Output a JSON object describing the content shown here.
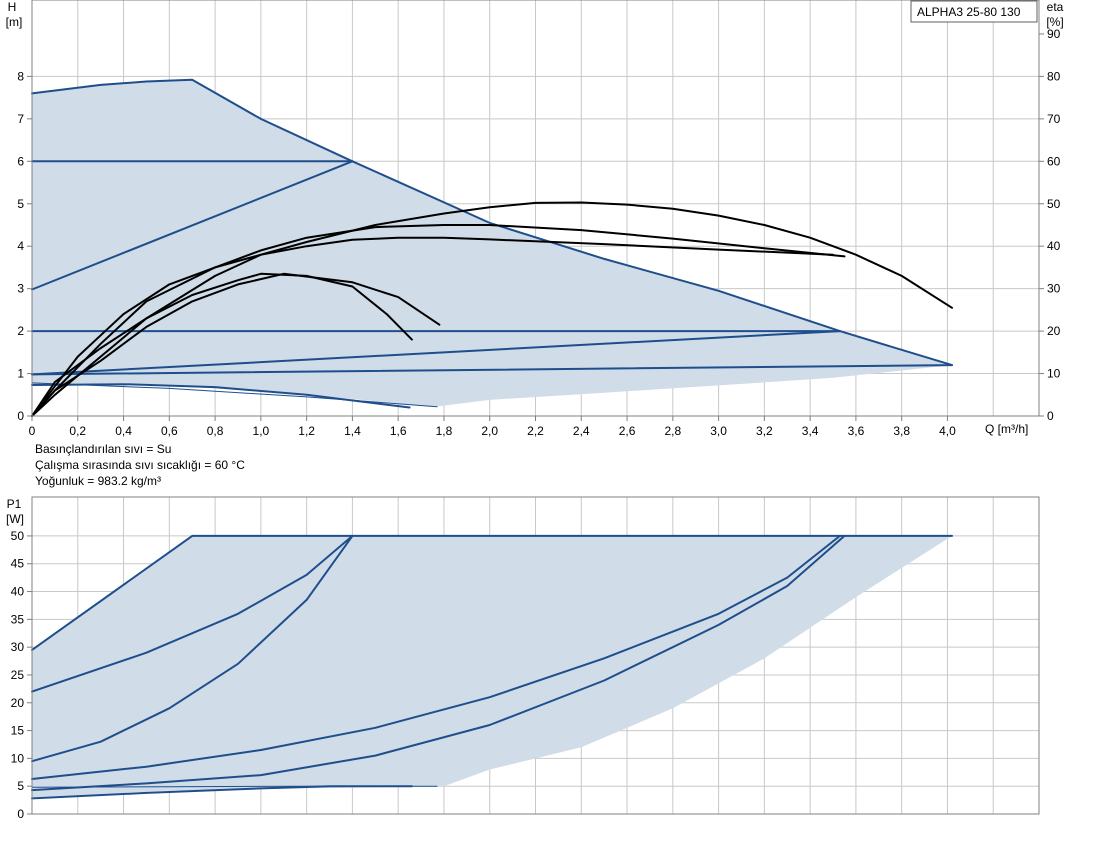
{
  "model_box": {
    "label": "ALPHA3 25-80 130"
  },
  "info_lines": [
    "Basınçlandırılan sıvı = Su",
    "Çalışma sırasında sıvı sıcaklığı = 60 °C",
    "Yoğunluk = 983.2 kg/m³"
  ],
  "colors": {
    "envelope_fill": "#d0dce8",
    "curve_blue": "#1f4e8c",
    "eta_curve": "#000000",
    "grid": "#c8c8c8"
  },
  "chart_data": [
    {
      "type": "line",
      "name": "head_eta",
      "ylabel_lines": [
        "H",
        "[m]"
      ],
      "y2label_lines": [
        "eta",
        "[%]"
      ],
      "xlabel": "Q [m³/h]",
      "xlim": [
        0,
        4.4
      ],
      "ylim": [
        0,
        9.8
      ],
      "y2lim": [
        0,
        98
      ],
      "x_ticks": [
        "0",
        "0,2",
        "0,4",
        "0,6",
        "0,8",
        "1,0",
        "1,2",
        "1,4",
        "1,6",
        "1,8",
        "2,0",
        "2,2",
        "2,4",
        "2,6",
        "2,8",
        "3,0",
        "3,2",
        "3,4",
        "3,6",
        "3,8",
        "4,0"
      ],
      "y_ticks": [
        "0",
        "1",
        "2",
        "3",
        "4",
        "5",
        "6",
        "7",
        "8"
      ],
      "y2_ticks": [
        "0",
        "10",
        "20",
        "30",
        "40",
        "50",
        "60",
        "70",
        "80",
        "90"
      ],
      "grid": true,
      "envelope": [
        [
          0,
          7.6
        ],
        [
          0.3,
          7.8
        ],
        [
          0.5,
          7.88
        ],
        [
          0.7,
          7.92
        ],
        [
          1.0,
          7.0
        ],
        [
          1.4,
          6.0
        ],
        [
          2.0,
          4.55
        ],
        [
          2.5,
          3.7
        ],
        [
          3.0,
          2.95
        ],
        [
          3.53,
          2.0
        ],
        [
          4.02,
          1.2
        ],
        [
          3.5,
          0.9
        ],
        [
          3.0,
          0.72
        ],
        [
          2.5,
          0.55
        ],
        [
          2.0,
          0.38
        ],
        [
          1.76,
          0.22
        ],
        [
          1.2,
          0.5
        ],
        [
          0.6,
          0.72
        ],
        [
          0.2,
          0.76
        ],
        [
          0,
          0.73
        ]
      ],
      "series": [
        {
          "style": "blue",
          "points": [
            [
              0,
              7.6
            ],
            [
              0.3,
              7.8
            ],
            [
              0.5,
              7.88
            ],
            [
              0.7,
              7.92
            ],
            [
              1.0,
              7.0
            ],
            [
              1.4,
              6.0
            ],
            [
              2.0,
              4.55
            ],
            [
              2.5,
              3.7
            ],
            [
              3.0,
              2.95
            ],
            [
              3.53,
              2.0
            ],
            [
              4.02,
              1.2
            ]
          ]
        },
        {
          "style": "blue",
          "points": [
            [
              0,
              6.0
            ],
            [
              1.4,
              6.0
            ]
          ]
        },
        {
          "style": "blue",
          "points": [
            [
              0,
              2.98
            ],
            [
              1.4,
              6.0
            ]
          ]
        },
        {
          "style": "blue",
          "points": [
            [
              0,
              2.0
            ],
            [
              3.53,
              2.0
            ]
          ]
        },
        {
          "style": "blue",
          "points": [
            [
              0,
              0.98
            ],
            [
              3.53,
              2.0
            ]
          ]
        },
        {
          "style": "blue",
          "points": [
            [
              0,
              0.98
            ],
            [
              4.02,
              1.2
            ]
          ]
        },
        {
          "style": "blue",
          "points": [
            [
              0,
              0.73
            ],
            [
              0.4,
              0.75
            ],
            [
              0.8,
              0.68
            ],
            [
              1.2,
              0.5
            ],
            [
              1.65,
              0.2
            ]
          ]
        },
        {
          "style": "thin-blue",
          "points": [
            [
              0,
              0.78
            ],
            [
              0.6,
              0.65
            ],
            [
              1.2,
              0.45
            ],
            [
              1.77,
              0.22
            ]
          ]
        },
        {
          "style": "eta",
          "points": [
            [
              0,
              0
            ],
            [
              0.1,
              7
            ],
            [
              0.2,
              14
            ],
            [
              0.3,
              19
            ],
            [
              0.4,
              24
            ],
            [
              0.6,
              31
            ],
            [
              0.8,
              35
            ],
            [
              1.0,
              38
            ],
            [
              1.2,
              40
            ],
            [
              1.4,
              41.5
            ],
            [
              1.6,
              42
            ],
            [
              1.8,
              42
            ],
            [
              2.0,
              41.6
            ],
            [
              2.5,
              40.5
            ],
            [
              3.0,
              39.2
            ],
            [
              3.5,
              38
            ]
          ]
        },
        {
          "style": "eta",
          "points": [
            [
              0,
              0
            ],
            [
              0.1,
              6
            ],
            [
              0.3,
              17
            ],
            [
              0.5,
              27
            ],
            [
              0.8,
              35
            ],
            [
              1.0,
              39
            ],
            [
              1.2,
              42
            ],
            [
              1.5,
              44.5
            ],
            [
              1.8,
              45
            ],
            [
              2.0,
              45
            ],
            [
              2.4,
              43.8
            ],
            [
              2.8,
              41.8
            ],
            [
              3.2,
              39.5
            ],
            [
              3.55,
              37.6
            ]
          ]
        },
        {
          "style": "eta",
          "points": [
            [
              0,
              0
            ],
            [
              0.1,
              5
            ],
            [
              0.3,
              14
            ],
            [
              0.5,
              23
            ],
            [
              0.8,
              33
            ],
            [
              1.0,
              38
            ],
            [
              1.2,
              41
            ],
            [
              1.5,
              45
            ],
            [
              1.8,
              47.7
            ],
            [
              2.0,
              49.2
            ],
            [
              2.2,
              50.2
            ],
            [
              2.4,
              50.3
            ],
            [
              2.6,
              49.8
            ],
            [
              2.8,
              48.8
            ],
            [
              3.0,
              47.2
            ],
            [
              3.2,
              45
            ],
            [
              3.4,
              42
            ],
            [
              3.6,
              38
            ],
            [
              3.8,
              33
            ],
            [
              4.02,
              25.5
            ]
          ]
        },
        {
          "style": "eta",
          "points": [
            [
              0,
              0
            ],
            [
              0.1,
              8
            ],
            [
              0.3,
              16
            ],
            [
              0.5,
              23
            ],
            [
              0.7,
              28.5
            ],
            [
              0.9,
              32
            ],
            [
              1.0,
              33.5
            ],
            [
              1.2,
              33
            ],
            [
              1.4,
              30.5
            ],
            [
              1.55,
              24
            ],
            [
              1.66,
              18
            ]
          ]
        },
        {
          "style": "eta",
          "points": [
            [
              0,
              0
            ],
            [
              0.1,
              6
            ],
            [
              0.3,
              13
            ],
            [
              0.5,
              21
            ],
            [
              0.7,
              27
            ],
            [
              0.9,
              31
            ],
            [
              1.1,
              33.5
            ],
            [
              1.4,
              31.5
            ],
            [
              1.6,
              28
            ],
            [
              1.78,
              21.5
            ]
          ]
        }
      ]
    },
    {
      "type": "line",
      "name": "power",
      "ylabel_lines": [
        "P1",
        "[W]"
      ],
      "xlim": [
        0,
        4.4
      ],
      "ylim": [
        0,
        57
      ],
      "y_ticks": [
        "0",
        "5",
        "10",
        "15",
        "20",
        "25",
        "30",
        "35",
        "40",
        "45",
        "50"
      ],
      "grid": true,
      "envelope": [
        [
          0,
          29.5
        ],
        [
          0.7,
          50
        ],
        [
          4.02,
          50
        ],
        [
          3.6,
          39
        ],
        [
          3.2,
          28
        ],
        [
          2.8,
          19
        ],
        [
          2.4,
          12
        ],
        [
          2.0,
          8
        ],
        [
          1.8,
          5
        ],
        [
          1.2,
          4.6
        ],
        [
          0.6,
          4.2
        ],
        [
          0,
          3
        ]
      ],
      "series": [
        {
          "style": "blue",
          "points": [
            [
              0,
              29.5
            ],
            [
              0.7,
              50
            ],
            [
              4.02,
              50
            ]
          ]
        },
        {
          "style": "blue",
          "points": [
            [
              0,
              22
            ],
            [
              0.5,
              29
            ],
            [
              0.9,
              36
            ],
            [
              1.2,
              43
            ],
            [
              1.4,
              50
            ]
          ]
        },
        {
          "style": "blue",
          "points": [
            [
              0,
              9.5
            ],
            [
              0.3,
              13
            ],
            [
              0.6,
              19
            ],
            [
              0.9,
              27
            ],
            [
              1.2,
              38.5
            ],
            [
              1.4,
              50
            ]
          ]
        },
        {
          "style": "blue",
          "points": [
            [
              0,
              6.3
            ],
            [
              0.5,
              8.5
            ],
            [
              1.0,
              11.5
            ],
            [
              1.5,
              15.5
            ],
            [
              2.0,
              21
            ],
            [
              2.5,
              28
            ],
            [
              3.0,
              36
            ],
            [
              3.3,
              42.5
            ],
            [
              3.53,
              50
            ]
          ]
        },
        {
          "style": "blue",
          "points": [
            [
              0,
              4.3
            ],
            [
              0.5,
              5.5
            ],
            [
              1.0,
              7
            ],
            [
              1.5,
              10.5
            ],
            [
              2.0,
              16
            ],
            [
              2.5,
              24
            ],
            [
              3.0,
              34
            ],
            [
              3.3,
              41
            ],
            [
              3.55,
              50
            ]
          ]
        },
        {
          "style": "blue",
          "points": [
            [
              0,
              2.8
            ],
            [
              0.5,
              3.8
            ],
            [
              1.0,
              4.6
            ],
            [
              1.3,
              5
            ],
            [
              1.66,
              5
            ]
          ]
        },
        {
          "style": "thin-blue",
          "points": [
            [
              0,
              4.8
            ],
            [
              0.6,
              4.9
            ],
            [
              1.2,
              5
            ],
            [
              1.77,
              5
            ]
          ]
        }
      ]
    }
  ]
}
